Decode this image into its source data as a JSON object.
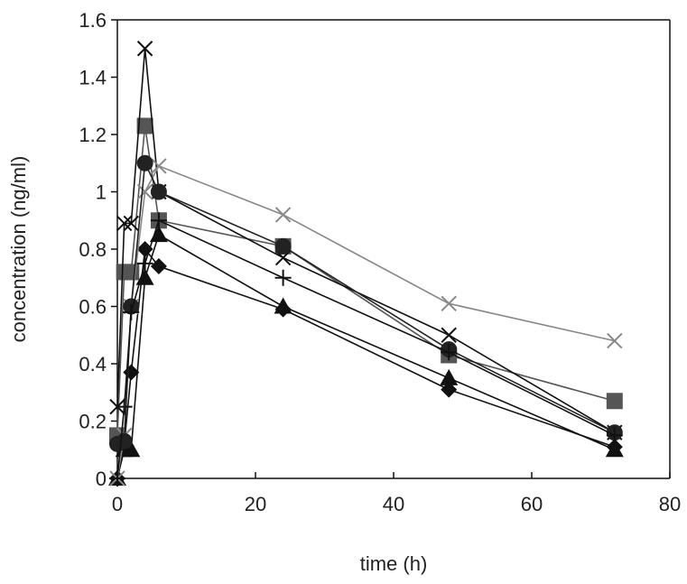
{
  "chart_data": {
    "type": "line",
    "xlabel": "time (h)",
    "ylabel": "concentration (ng/ml)",
    "xlim": [
      0,
      80
    ],
    "ylim": [
      0,
      1.6
    ],
    "x_ticks": [
      "0",
      "20",
      "40",
      "60",
      "80"
    ],
    "y_ticks": [
      "0",
      "0.2",
      "0.4",
      "0.6",
      "0.8",
      "1",
      "1.2",
      "1.4",
      "1.6"
    ],
    "grid": false,
    "series": [
      {
        "marker": "diamond",
        "color": "#111111",
        "x": [
          0,
          1,
          2,
          4,
          6,
          24,
          48,
          72
        ],
        "y": [
          0,
          0.12,
          0.37,
          0.8,
          0.74,
          0.59,
          0.31,
          0.11
        ]
      },
      {
        "marker": "square",
        "color": "#555555",
        "x": [
          0,
          1,
          2,
          4,
          6,
          24,
          48,
          72
        ],
        "y": [
          0.15,
          0.72,
          0.72,
          1.23,
          0.9,
          0.81,
          0.43,
          0.27
        ]
      },
      {
        "marker": "triangle",
        "color": "#111111",
        "x": [
          0,
          1,
          2,
          4,
          6,
          24,
          48,
          72
        ],
        "y": [
          0,
          0.1,
          0.1,
          0.7,
          0.85,
          0.6,
          0.35,
          0.1
        ]
      },
      {
        "marker": "x",
        "color": "#111111",
        "x": [
          0,
          1,
          2,
          4,
          6,
          24,
          48,
          72
        ],
        "y": [
          0.25,
          0.89,
          0.89,
          1.5,
          1.0,
          0.77,
          0.5,
          0.16
        ]
      },
      {
        "marker": "x",
        "color": "#888888",
        "x": [
          0,
          1,
          2,
          4,
          6,
          24,
          48,
          72
        ],
        "y": [
          0,
          0.15,
          0.6,
          1.0,
          1.09,
          0.92,
          0.61,
          0.48
        ]
      },
      {
        "marker": "circle",
        "color": "#222222",
        "x": [
          0,
          1,
          2,
          4,
          6,
          24,
          48,
          72
        ],
        "y": [
          0.12,
          0.13,
          0.6,
          1.1,
          1.0,
          0.81,
          0.45,
          0.16
        ]
      },
      {
        "marker": "plus",
        "color": "#111111",
        "x": [
          0,
          1,
          2,
          4,
          6,
          24,
          48,
          72
        ],
        "y": [
          0,
          0.25,
          0.58,
          0.75,
          0.9,
          0.7,
          0.44,
          0.15
        ]
      }
    ]
  }
}
